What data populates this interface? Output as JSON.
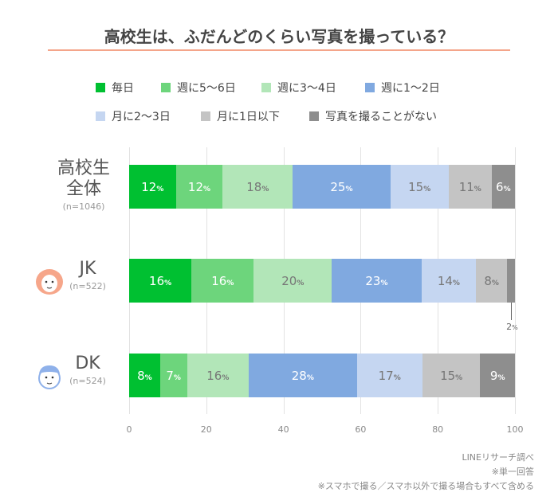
{
  "title": "高校生は、ふだんどのくらい写真を撮っている？",
  "chart_data": {
    "type": "bar",
    "orientation": "horizontal-stacked",
    "title": "高校生は、ふだんどのくらい写真を撮っている？",
    "xlim": [
      0,
      100
    ],
    "xticks": [
      "0",
      "20",
      "40",
      "60",
      "80",
      "100"
    ],
    "grid": true,
    "legend_placement": "top",
    "percent_suffix": "%",
    "series_names": [
      "毎日",
      "週に5〜6日",
      "週に3〜4日",
      "週に1〜2日",
      "月に2〜3日",
      "月に1日以下",
      "写真を撮ることがない"
    ],
    "colors": [
      "#00c031",
      "#6dd57c",
      "#b2e6b8",
      "#80a9e0",
      "#c5d6f1",
      "#c4c4c4",
      "#8e8e8e"
    ],
    "label_colors": [
      "#ffffff",
      "#ffffff",
      "#777777",
      "#ffffff",
      "#777777",
      "#777777",
      "#ffffff"
    ],
    "categories": [
      {
        "label": [
          "高校生",
          "全体"
        ],
        "n": "(n=1046)",
        "icon": "none",
        "values": [
          12,
          12,
          18,
          25,
          15,
          11,
          6
        ]
      },
      {
        "label": [
          "JK"
        ],
        "n": "(n=522)",
        "icon": "girl-face-icon",
        "values": [
          16,
          16,
          20,
          23,
          14,
          8,
          2
        ],
        "callout_index": 6
      },
      {
        "label": [
          "DK"
        ],
        "n": "(n=524)",
        "icon": "boy-face-icon",
        "values": [
          8,
          7,
          16,
          28,
          17,
          15,
          9
        ]
      }
    ]
  },
  "notes": [
    "LINEリサーチ調べ",
    "※単一回答",
    "※スマホで撮る／スマホ以外で撮る場合もすべて含める"
  ]
}
